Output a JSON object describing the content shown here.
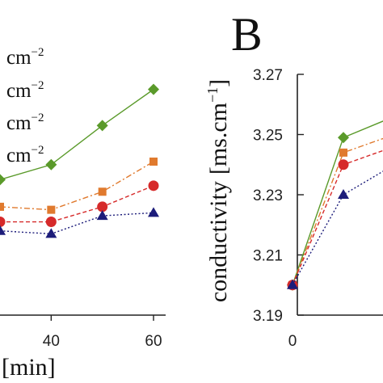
{
  "chart_data": [
    {
      "type": "line",
      "panel": "left (cropped)",
      "x": [
        30,
        40,
        50,
        60
      ],
      "xlim": [
        30,
        60
      ],
      "ylim": [
        3.19,
        3.27
      ],
      "x_ticks": [
        "40",
        "60"
      ],
      "xlabel_visible": "[min]",
      "legend_unit": "cm",
      "legend_exponent": "−2",
      "series": [
        {
          "color": "#5a9a2a",
          "marker": "diamond",
          "dash": "solid",
          "values": [
            3.235,
            3.24,
            3.253,
            3.265
          ]
        },
        {
          "color": "#e07a2e",
          "marker": "square",
          "dash": "dashdot",
          "values": [
            3.226,
            3.225,
            3.231,
            3.241
          ]
        },
        {
          "color": "#d62a2a",
          "marker": "circle",
          "dash": "dashed",
          "values": [
            3.221,
            3.221,
            3.226,
            3.233
          ]
        },
        {
          "color": "#1c1c7a",
          "marker": "triangle",
          "dash": "dotted",
          "values": [
            3.218,
            3.217,
            3.223,
            3.224
          ]
        }
      ]
    },
    {
      "type": "line",
      "panel_label": "B",
      "x": [
        0,
        10,
        20
      ],
      "xlim": [
        0,
        20
      ],
      "ylim": [
        3.19,
        3.27
      ],
      "x_ticks": [
        "0"
      ],
      "y_ticks": [
        "3.19",
        "3.21",
        "3.23",
        "3.25",
        "3.27"
      ],
      "ylabel": "conductivity",
      "ylabel_unit": "[ms.cm",
      "ylabel_unit_exp": "−1",
      "ylabel_unit_close": "]",
      "series": [
        {
          "color": "#5a9a2a",
          "marker": "diamond",
          "dash": "solid",
          "values": [
            3.2,
            3.249,
            3.256
          ]
        },
        {
          "color": "#e07a2e",
          "marker": "square",
          "dash": "dashdot",
          "values": [
            3.2,
            3.244,
            3.25
          ]
        },
        {
          "color": "#d62a2a",
          "marker": "circle",
          "dash": "dashed",
          "values": [
            3.2,
            3.24,
            3.246
          ]
        },
        {
          "color": "#1c1c7a",
          "marker": "triangle",
          "dash": "dotted",
          "values": [
            3.2,
            3.23,
            3.24
          ]
        }
      ]
    }
  ]
}
